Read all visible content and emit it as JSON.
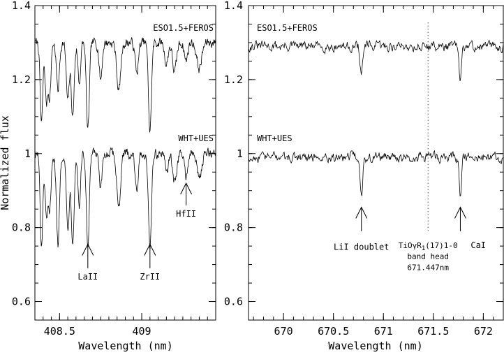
{
  "chart_data": [
    {
      "type": "line",
      "panel": "left",
      "xlim": [
        408.35,
        409.45
      ],
      "ylim": [
        0.55,
        1.4
      ],
      "xticks": [
        408.5,
        409
      ],
      "xtick_labels": [
        "408.5",
        "409"
      ],
      "yticks": [
        0.6,
        0.8,
        1,
        1.2,
        1.4
      ],
      "ytick_labels": [
        "0.6",
        "0.8",
        "1",
        "1.2",
        "1.4"
      ],
      "xlabel": "Wavelength (nm)",
      "ylabel": "Normalized flux",
      "series": [
        {
          "name": "ESO1.5+FEROS",
          "continuum": 1.3,
          "lines": [
            {
              "x": 408.39,
              "depth": 0.22,
              "width": 0.008
            },
            {
              "x": 408.42,
              "depth": 0.16,
              "width": 0.008
            },
            {
              "x": 408.44,
              "depth": 0.14,
              "width": 0.008
            },
            {
              "x": 408.49,
              "depth": 0.13,
              "width": 0.009
            },
            {
              "x": 408.55,
              "depth": 0.16,
              "width": 0.009
            },
            {
              "x": 408.58,
              "depth": 0.2,
              "width": 0.009
            },
            {
              "x": 408.62,
              "depth": 0.11,
              "width": 0.008
            },
            {
              "x": 408.672,
              "depth": 0.24,
              "width": 0.009
            },
            {
              "x": 408.75,
              "depth": 0.1,
              "width": 0.009
            },
            {
              "x": 408.86,
              "depth": 0.13,
              "width": 0.012
            },
            {
              "x": 408.97,
              "depth": 0.08,
              "width": 0.01
            },
            {
              "x": 409.05,
              "depth": 0.24,
              "width": 0.009
            },
            {
              "x": 409.15,
              "depth": 0.06,
              "width": 0.01
            },
            {
              "x": 409.2,
              "depth": 0.08,
              "width": 0.012
            },
            {
              "x": 409.27,
              "depth": 0.05,
              "width": 0.01
            },
            {
              "x": 409.35,
              "depth": 0.07,
              "width": 0.015
            }
          ]
        },
        {
          "name": "WHT+UES",
          "continuum": 1.0,
          "lines": [
            {
              "x": 408.39,
              "depth": 0.26,
              "width": 0.008
            },
            {
              "x": 408.42,
              "depth": 0.18,
              "width": 0.008
            },
            {
              "x": 408.44,
              "depth": 0.16,
              "width": 0.008
            },
            {
              "x": 408.49,
              "depth": 0.25,
              "width": 0.009
            },
            {
              "x": 408.55,
              "depth": 0.2,
              "width": 0.009
            },
            {
              "x": 408.58,
              "depth": 0.23,
              "width": 0.009
            },
            {
              "x": 408.62,
              "depth": 0.14,
              "width": 0.008
            },
            {
              "x": 408.672,
              "depth": 0.26,
              "width": 0.009
            },
            {
              "x": 408.75,
              "depth": 0.1,
              "width": 0.009
            },
            {
              "x": 408.86,
              "depth": 0.14,
              "width": 0.012
            },
            {
              "x": 408.97,
              "depth": 0.09,
              "width": 0.01
            },
            {
              "x": 409.05,
              "depth": 0.25,
              "width": 0.009
            },
            {
              "x": 409.15,
              "depth": 0.05,
              "width": 0.01
            },
            {
              "x": 409.2,
              "depth": 0.08,
              "width": 0.012
            },
            {
              "x": 409.27,
              "depth": 0.06,
              "width": 0.01
            },
            {
              "x": 409.35,
              "depth": 0.06,
              "width": 0.015
            }
          ]
        }
      ],
      "annotations": [
        {
          "text": "LaII",
          "x": 408.672,
          "y": 0.66
        },
        {
          "text": "ZrII",
          "x": 409.05,
          "y": 0.66
        },
        {
          "text": "HfII",
          "x": 409.27,
          "y": 0.83
        }
      ],
      "arrows": [
        {
          "x": 408.672,
          "y_tail": 0.69,
          "y_head": 0.755
        },
        {
          "x": 409.05,
          "y_tail": 0.69,
          "y_head": 0.755
        },
        {
          "x": 409.27,
          "y_tail": 0.86,
          "y_head": 0.92
        }
      ]
    },
    {
      "type": "line",
      "panel": "right",
      "xlim": [
        669.65,
        672.2
      ],
      "ylim": [
        0.55,
        1.4
      ],
      "xticks": [
        670,
        670.5,
        671,
        671.5,
        672
      ],
      "xtick_labels": [
        "670",
        "670.5",
        "671",
        "671.5",
        "672"
      ],
      "yticks": [
        0.6,
        0.8,
        1,
        1.2,
        1.4
      ],
      "ytick_labels": [
        "0.6",
        "0.8",
        "1",
        "1.2",
        "1.4"
      ],
      "xlabel": "Wavelength (nm)",
      "series": [
        {
          "name": "ESO1.5+FEROS",
          "continuum": 1.29,
          "lines": [
            {
              "x": 670.78,
              "depth": 0.08,
              "width": 0.012
            },
            {
              "x": 671.77,
              "depth": 0.1,
              "width": 0.012
            }
          ]
        },
        {
          "name": "WHT+UES",
          "continuum": 0.99,
          "lines": [
            {
              "x": 670.78,
              "depth": 0.11,
              "width": 0.012
            },
            {
              "x": 671.77,
              "depth": 0.1,
              "width": 0.012
            }
          ]
        }
      ],
      "vline": {
        "x": 671.447
      },
      "annotations": [
        {
          "text": "LiI doublet",
          "x": 670.78,
          "y": 0.74
        },
        {
          "text": "CaI",
          "x": 671.95,
          "y": 0.745
        },
        {
          "text": "band head",
          "x": 671.447,
          "y": 0.715
        },
        {
          "text": "671.447nm",
          "x": 671.447,
          "y": 0.685
        }
      ],
      "tio_label": {
        "prefix": "TiO",
        "gamma": "γ",
        "r": "R",
        "sub": "1",
        "suffix": "(17)1-0",
        "x": 671.447,
        "y": 0.745
      },
      "arrows": [
        {
          "x": 670.78,
          "y_tail": 0.79,
          "y_head": 0.855
        },
        {
          "x": 671.77,
          "y_tail": 0.79,
          "y_head": 0.855
        }
      ]
    }
  ]
}
